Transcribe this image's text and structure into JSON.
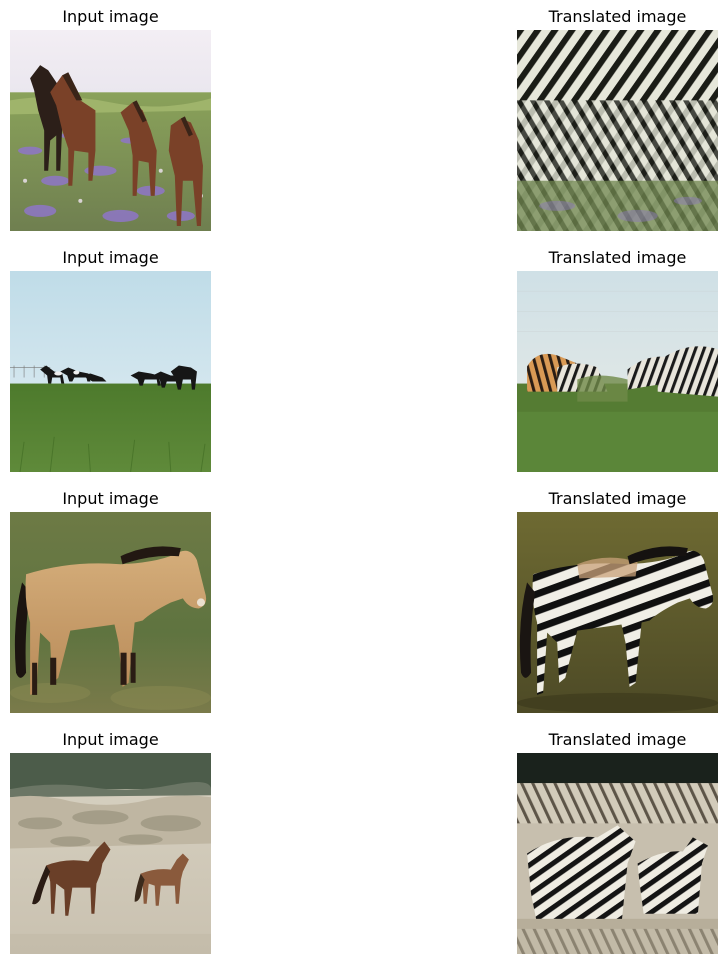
{
  "rows": [
    {
      "input": {
        "title": "Input image",
        "subject": "four horses standing in a meadow with purple wildflowers"
      },
      "translated": {
        "title": "Translated image",
        "subject": "zebra-striped horses in a flowery meadow"
      }
    },
    {
      "input": {
        "title": "Input image",
        "subject": "distant dark horses grazing on a green field under a pale sky"
      },
      "translated": {
        "title": "Translated image",
        "subject": "distant striped horses on a green field"
      }
    },
    {
      "input": {
        "title": "Input image",
        "subject": "tan horse with dark mane standing on grass"
      },
      "translated": {
        "title": "Translated image",
        "subject": "zebra-striped horse standing on grass"
      }
    },
    {
      "input": {
        "title": "Input image",
        "subject": "two brown horses on a sandy beach with dunes"
      },
      "translated": {
        "title": "Translated image",
        "subject": "two zebras on a sandy beach with dunes"
      }
    }
  ],
  "colors": {
    "stripe_dark": "#111111",
    "stripe_light": "#f1f0ea"
  }
}
